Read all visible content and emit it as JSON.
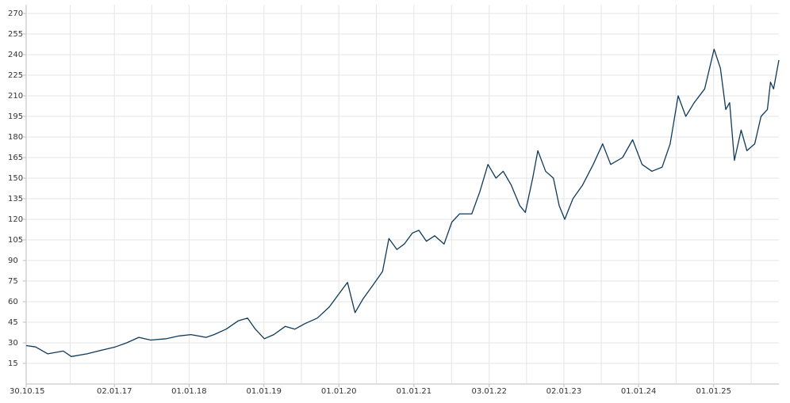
{
  "chart_data": {
    "type": "line",
    "x": [
      "30.10.15",
      "15.12.15",
      "12.02.16",
      "28.04.16",
      "06.06.16",
      "22.08.16",
      "10.11.16",
      "06.01.17",
      "03.03.17",
      "01.05.17",
      "28.06.17",
      "13.09.17",
      "13.11.17",
      "10.01.18",
      "25.03.18",
      "03.05.18",
      "01.07.18",
      "28.08.18",
      "13.10.18",
      "20.11.18",
      "03.01.19",
      "18.02.19",
      "15.04.19",
      "01.06.19",
      "20.07.19",
      "18.09.19",
      "15.11.19",
      "03.01.20",
      "12.02.20",
      "20.03.20",
      "28.04.20",
      "15.06.20",
      "01.08.20",
      "01.09.20",
      "10.10.20",
      "15.11.20",
      "25.12.20",
      "25.01.21",
      "03.03.21",
      "12.04.21",
      "28.05.21",
      "05.07.21",
      "12.08.21",
      "10.10.21",
      "18.11.21",
      "28.12.21",
      "05.02.22",
      "12.03.22",
      "20.04.22",
      "01.06.22",
      "28.06.22",
      "03.08.22",
      "28.08.22",
      "05.10.22",
      "12.11.22",
      "10.12.22",
      "06.01.23",
      "15.02.23",
      "03.04.23",
      "25.05.23",
      "10.07.23",
      "18.08.23",
      "15.10.23",
      "03.12.23",
      "18.01.24",
      "06.03.24",
      "25.04.24",
      "03.06.24",
      "12.07.24",
      "18.08.24",
      "28.09.24",
      "18.11.24",
      "03.01.25",
      "03.02.25",
      "01.03.25",
      "20.03.25",
      "12.04.25",
      "15.05.25",
      "12.06.25",
      "20.07.25",
      "20.08.25",
      "20.09.25",
      "05.10.25",
      "20.10.25",
      "15.11.25"
    ],
    "series": [
      {
        "color": "#0f3a5a",
        "values": [
          28,
          27,
          22,
          24,
          20,
          22,
          25,
          27,
          30,
          34,
          32,
          33,
          35,
          36,
          34,
          36,
          40,
          46,
          48,
          40,
          33,
          36,
          42,
          40,
          44,
          48,
          56,
          66,
          74,
          52,
          62,
          72,
          82,
          106,
          98,
          102,
          110,
          112,
          104,
          108,
          102,
          118,
          124,
          124,
          140,
          160,
          150,
          155,
          145,
          130,
          125,
          150,
          170,
          155,
          150,
          130,
          120,
          135,
          145,
          160,
          175,
          160,
          165,
          178,
          160,
          155,
          158,
          175,
          210,
          195,
          205,
          215,
          244,
          230,
          200,
          205,
          163,
          185,
          170,
          175,
          195,
          200,
          220,
          215,
          236
        ]
      }
    ],
    "xlim": [
      "30.10.15",
      "15.11.25"
    ],
    "xticks": [
      "30.10.15",
      "02.01.17",
      "01.01.18",
      "01.01.19",
      "01.01.20",
      "01.01.21",
      "03.01.22",
      "02.01.23",
      "01.01.24",
      "01.01.25"
    ],
    "ylim": [
      0,
      270
    ],
    "yticks": [
      15,
      30,
      45,
      60,
      75,
      90,
      105,
      120,
      135,
      150,
      165,
      180,
      195,
      210,
      225,
      240,
      255,
      270
    ],
    "grid": true
  }
}
